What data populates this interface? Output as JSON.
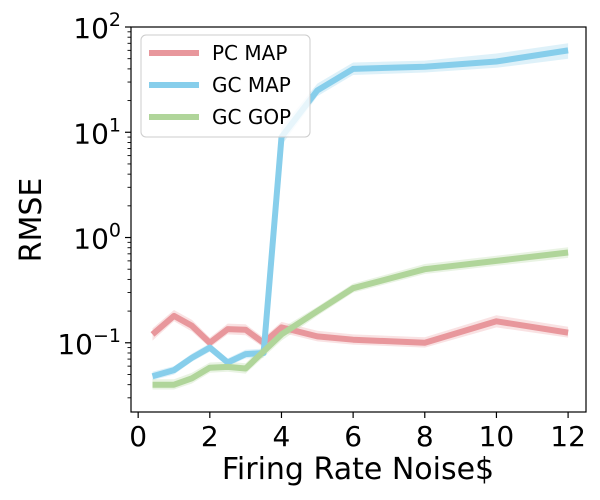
{
  "chart_data": {
    "type": "line",
    "title": "",
    "xlabel": "Firing Rate Noise$",
    "ylabel": "RMSE",
    "xlim": [
      -0.2,
      12.5
    ],
    "ylim": [
      0.022,
      100
    ],
    "yscale": "log",
    "x_ticks": [
      0,
      2,
      4,
      6,
      8,
      10,
      12
    ],
    "y_ticks": [
      {
        "value": 0.1,
        "base": "10",
        "exp": "−1"
      },
      {
        "value": 1,
        "base": "10",
        "exp": "0"
      },
      {
        "value": 10,
        "base": "10",
        "exp": "1"
      },
      {
        "value": 100,
        "base": "10",
        "exp": "2"
      }
    ],
    "grid": false,
    "legend_position": "top-left",
    "series": [
      {
        "name": "PC MAP",
        "color": "#e8979c",
        "x": [
          0.4,
          1,
          1.5,
          2,
          2.5,
          3,
          3.5,
          4,
          5,
          6,
          8,
          10,
          12
        ],
        "y": [
          0.12,
          0.18,
          0.145,
          0.1,
          0.135,
          0.133,
          0.1,
          0.14,
          0.115,
          0.107,
          0.1,
          0.16,
          0.125
        ],
        "lower": [
          0.105,
          0.16,
          0.128,
          0.09,
          0.12,
          0.118,
          0.09,
          0.125,
          0.103,
          0.096,
          0.09,
          0.14,
          0.112
        ],
        "upper": [
          0.137,
          0.205,
          0.165,
          0.112,
          0.152,
          0.15,
          0.112,
          0.158,
          0.13,
          0.12,
          0.113,
          0.183,
          0.142
        ]
      },
      {
        "name": "GC MAP",
        "color": "#87ceeb",
        "x": [
          0.4,
          1,
          1.5,
          2,
          2.5,
          3,
          3.5,
          4,
          5,
          6,
          8,
          10,
          12
        ],
        "y": [
          0.048,
          0.055,
          0.072,
          0.09,
          0.065,
          0.078,
          0.08,
          9,
          25,
          40,
          42,
          47,
          60
        ],
        "lower": [
          0.044,
          0.05,
          0.066,
          0.082,
          0.06,
          0.071,
          0.072,
          7.5,
          22,
          35,
          37,
          41,
          50
        ],
        "upper": [
          0.053,
          0.06,
          0.079,
          0.099,
          0.071,
          0.086,
          0.088,
          11,
          29,
          46,
          48,
          56,
          70
        ]
      },
      {
        "name": "GC GOP",
        "color": "#b0d59a",
        "x": [
          0.4,
          1,
          1.5,
          2,
          2.5,
          3,
          4,
          5,
          6,
          8,
          10,
          12
        ],
        "y": [
          0.04,
          0.04,
          0.046,
          0.058,
          0.059,
          0.057,
          0.12,
          0.2,
          0.33,
          0.5,
          0.6,
          0.72
        ],
        "lower": [
          0.036,
          0.036,
          0.041,
          0.052,
          0.053,
          0.051,
          0.105,
          0.18,
          0.3,
          0.45,
          0.54,
          0.64
        ],
        "upper": [
          0.045,
          0.045,
          0.052,
          0.065,
          0.066,
          0.064,
          0.137,
          0.22,
          0.365,
          0.56,
          0.67,
          0.81
        ]
      }
    ]
  }
}
